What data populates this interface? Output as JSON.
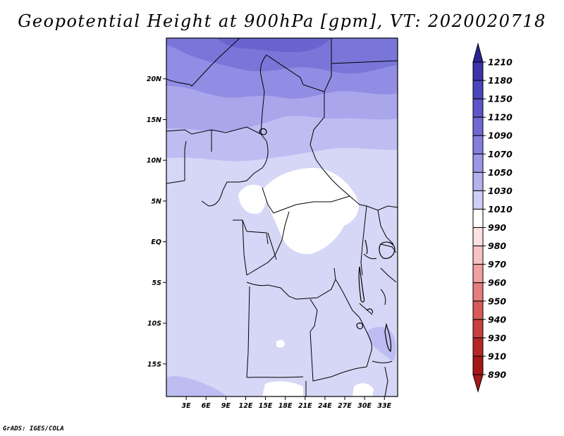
{
  "title": "Geopotential Height at 900hPa [gpm], VT: 2020020718",
  "credit": "GrADS: IGES/COLA",
  "map": {
    "region": "Central Africa",
    "lat_range": [
      -19,
      25
    ],
    "lon_range": [
      0,
      35
    ],
    "lat_labels": [
      {
        "lat": 20,
        "text": "20N"
      },
      {
        "lat": 15,
        "text": "15N"
      },
      {
        "lat": 10,
        "text": "10N"
      },
      {
        "lat": 5,
        "text": "5N"
      },
      {
        "lat": 0,
        "text": "EQ"
      },
      {
        "lat": -5,
        "text": "5S"
      },
      {
        "lat": -10,
        "text": "10S"
      },
      {
        "lat": -15,
        "text": "15S"
      }
    ],
    "lon_labels": [
      {
        "lon": 3,
        "text": "3E"
      },
      {
        "lon": 6,
        "text": "6E"
      },
      {
        "lon": 9,
        "text": "9E"
      },
      {
        "lon": 12,
        "text": "12E"
      },
      {
        "lon": 15,
        "text": "15E"
      },
      {
        "lon": 18,
        "text": "18E"
      },
      {
        "lon": 21,
        "text": "21E"
      },
      {
        "lon": 24,
        "text": "24E"
      },
      {
        "lon": 27,
        "text": "27E"
      },
      {
        "lon": 30,
        "text": "30E"
      },
      {
        "lon": 33,
        "text": "33E"
      }
    ]
  },
  "colorbar": {
    "labels": [
      "1210",
      "1180",
      "1150",
      "1120",
      "1090",
      "1070",
      "1050",
      "1030",
      "1010",
      "990",
      "980",
      "970",
      "960",
      "950",
      "940",
      "930",
      "910",
      "890"
    ],
    "colors": [
      "#2a2496",
      "#3b34aa",
      "#4b45bc",
      "#5c56c8",
      "#6f6ad3",
      "#8380dd",
      "#9a97e6",
      "#b3b1ee",
      "#cfcef6",
      "#ffffff",
      "#fde0e0",
      "#f8c2c2",
      "#f0a0a0",
      "#e47d7d",
      "#d85a5a",
      "#c93e3e",
      "#b52727",
      "#a51818"
    ]
  }
}
